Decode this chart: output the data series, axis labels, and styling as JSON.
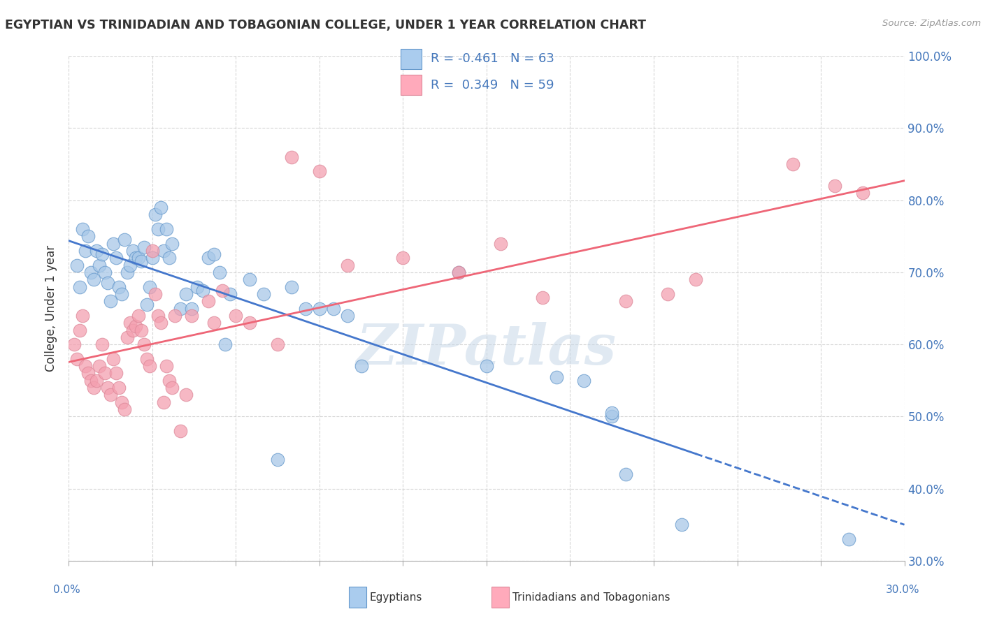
{
  "title": "EGYPTIAN VS TRINIDADIAN AND TOBAGONIAN COLLEGE, UNDER 1 YEAR CORRELATION CHART",
  "source": "Source: ZipAtlas.com",
  "ylabel_label": "College, Under 1 year",
  "legend_label1": "Egyptians",
  "legend_label2": "Trinidadians and Tobagonians",
  "R1": "-0.461",
  "N1": "63",
  "R2": "0.349",
  "N2": "59",
  "blue_scatter_color": "#A8C8E8",
  "pink_scatter_color": "#F4A0B0",
  "blue_edge_color": "#6699CC",
  "pink_edge_color": "#DD8899",
  "blue_line_color": "#4477CC",
  "pink_line_color": "#EE6677",
  "blue_legend_face": "#AACCEE",
  "pink_legend_face": "#FFAABB",
  "x_min": 0.0,
  "x_max": 30.0,
  "y_min": 30.0,
  "y_max": 100.0,
  "blue_points": [
    [
      0.3,
      71.0
    ],
    [
      0.4,
      68.0
    ],
    [
      0.5,
      76.0
    ],
    [
      0.6,
      73.0
    ],
    [
      0.7,
      75.0
    ],
    [
      0.8,
      70.0
    ],
    [
      0.9,
      69.0
    ],
    [
      1.0,
      73.0
    ],
    [
      1.1,
      71.0
    ],
    [
      1.2,
      72.5
    ],
    [
      1.3,
      70.0
    ],
    [
      1.4,
      68.5
    ],
    [
      1.5,
      66.0
    ],
    [
      1.6,
      74.0
    ],
    [
      1.7,
      72.0
    ],
    [
      1.8,
      68.0
    ],
    [
      1.9,
      67.0
    ],
    [
      2.0,
      74.5
    ],
    [
      2.1,
      70.0
    ],
    [
      2.2,
      71.0
    ],
    [
      2.3,
      73.0
    ],
    [
      2.4,
      72.0
    ],
    [
      2.5,
      72.0
    ],
    [
      2.6,
      71.5
    ],
    [
      2.7,
      73.5
    ],
    [
      2.8,
      65.5
    ],
    [
      2.9,
      68.0
    ],
    [
      3.0,
      72.0
    ],
    [
      3.1,
      78.0
    ],
    [
      3.2,
      76.0
    ],
    [
      3.3,
      79.0
    ],
    [
      3.4,
      73.0
    ],
    [
      3.5,
      76.0
    ],
    [
      3.6,
      72.0
    ],
    [
      3.7,
      74.0
    ],
    [
      4.0,
      65.0
    ],
    [
      4.2,
      67.0
    ],
    [
      4.4,
      65.0
    ],
    [
      4.6,
      68.0
    ],
    [
      4.8,
      67.5
    ],
    [
      5.0,
      72.0
    ],
    [
      5.2,
      72.5
    ],
    [
      5.4,
      70.0
    ],
    [
      5.6,
      60.0
    ],
    [
      5.8,
      67.0
    ],
    [
      6.5,
      69.0
    ],
    [
      7.0,
      67.0
    ],
    [
      7.5,
      44.0
    ],
    [
      8.0,
      68.0
    ],
    [
      8.5,
      65.0
    ],
    [
      9.0,
      65.0
    ],
    [
      9.5,
      65.0
    ],
    [
      10.0,
      64.0
    ],
    [
      10.5,
      57.0
    ],
    [
      14.0,
      70.0
    ],
    [
      15.0,
      57.0
    ],
    [
      17.5,
      55.5
    ],
    [
      18.5,
      55.0
    ],
    [
      19.5,
      50.0
    ],
    [
      19.5,
      50.5
    ],
    [
      20.0,
      42.0
    ],
    [
      22.0,
      35.0
    ],
    [
      28.0,
      33.0
    ]
  ],
  "pink_points": [
    [
      0.2,
      60.0
    ],
    [
      0.3,
      58.0
    ],
    [
      0.4,
      62.0
    ],
    [
      0.5,
      64.0
    ],
    [
      0.6,
      57.0
    ],
    [
      0.7,
      56.0
    ],
    [
      0.8,
      55.0
    ],
    [
      0.9,
      54.0
    ],
    [
      1.0,
      55.0
    ],
    [
      1.1,
      57.0
    ],
    [
      1.2,
      60.0
    ],
    [
      1.3,
      56.0
    ],
    [
      1.4,
      54.0
    ],
    [
      1.5,
      53.0
    ],
    [
      1.6,
      58.0
    ],
    [
      1.7,
      56.0
    ],
    [
      1.8,
      54.0
    ],
    [
      1.9,
      52.0
    ],
    [
      2.0,
      51.0
    ],
    [
      2.1,
      61.0
    ],
    [
      2.2,
      63.0
    ],
    [
      2.3,
      62.0
    ],
    [
      2.4,
      62.5
    ],
    [
      2.5,
      64.0
    ],
    [
      2.6,
      62.0
    ],
    [
      2.7,
      60.0
    ],
    [
      2.8,
      58.0
    ],
    [
      2.9,
      57.0
    ],
    [
      3.0,
      73.0
    ],
    [
      3.1,
      67.0
    ],
    [
      3.2,
      64.0
    ],
    [
      3.3,
      63.0
    ],
    [
      3.4,
      52.0
    ],
    [
      3.5,
      57.0
    ],
    [
      3.6,
      55.0
    ],
    [
      3.7,
      54.0
    ],
    [
      3.8,
      64.0
    ],
    [
      4.0,
      48.0
    ],
    [
      4.2,
      53.0
    ],
    [
      4.4,
      64.0
    ],
    [
      5.0,
      66.0
    ],
    [
      5.2,
      63.0
    ],
    [
      5.5,
      67.5
    ],
    [
      6.0,
      64.0
    ],
    [
      6.5,
      63.0
    ],
    [
      7.5,
      60.0
    ],
    [
      8.0,
      86.0
    ],
    [
      9.0,
      84.0
    ],
    [
      10.0,
      71.0
    ],
    [
      12.0,
      72.0
    ],
    [
      14.0,
      70.0
    ],
    [
      15.5,
      74.0
    ],
    [
      17.0,
      66.5
    ],
    [
      20.0,
      66.0
    ],
    [
      21.5,
      67.0
    ],
    [
      22.5,
      69.0
    ],
    [
      26.0,
      85.0
    ],
    [
      27.5,
      82.0
    ],
    [
      28.5,
      81.0
    ]
  ],
  "watermark": "ZIPatlas",
  "grid_color": "#CCCCCC",
  "tick_color": "#4477BB",
  "title_color": "#333333",
  "yticks": [
    30,
    40,
    50,
    60,
    70,
    80,
    90,
    100
  ],
  "ytick_labels": [
    "30.0%",
    "40.0%",
    "50.0%",
    "60.0%",
    "70.0%",
    "80.0%",
    "90.0%",
    "100.0%"
  ]
}
